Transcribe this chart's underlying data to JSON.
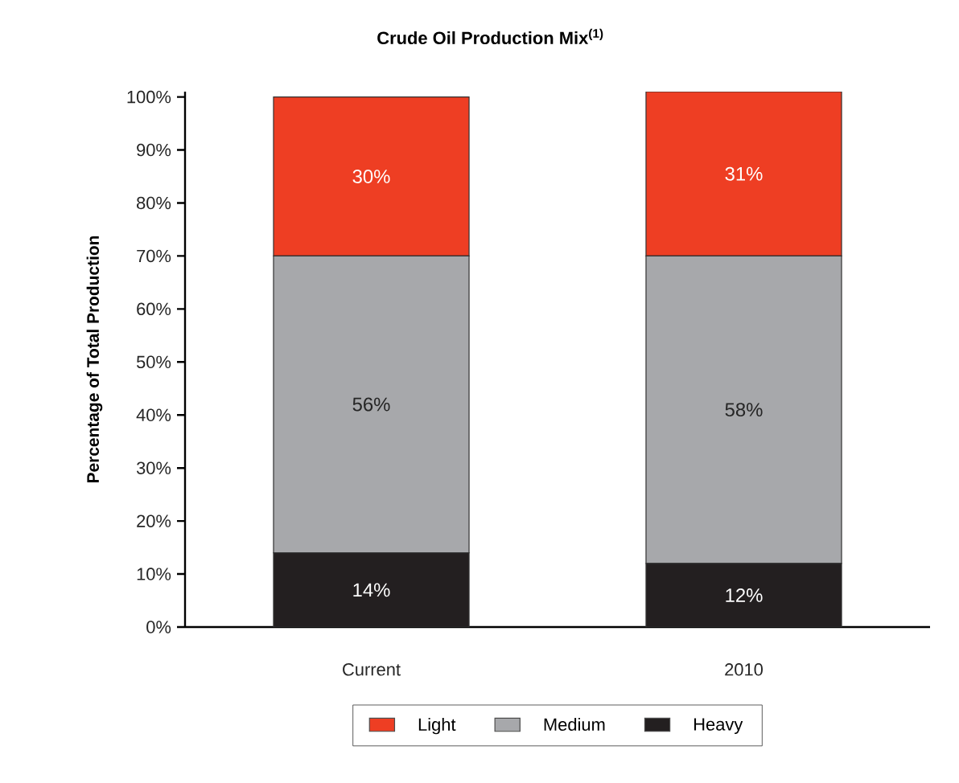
{
  "chart_data": {
    "type": "bar",
    "stacked": true,
    "title": "Crude Oil Production Mix$^{(1)}$",
    "ylabel": "Percentage of Total Production",
    "categories": [
      "Current",
      "2010"
    ],
    "series": [
      {
        "name": "Heavy",
        "color": "#231f20",
        "values": [
          14,
          12
        ],
        "value_labels": [
          "14%",
          "12%"
        ]
      },
      {
        "name": "Medium",
        "color": "#a7a8ab",
        "values": [
          56,
          58
        ],
        "value_labels": [
          "56%",
          "58%"
        ]
      },
      {
        "name": "Light",
        "color": "#ee3e23",
        "values": [
          30,
          31
        ],
        "value_labels": [
          "30%",
          "31%"
        ]
      }
    ],
    "ylim": [
      0,
      101
    ],
    "yticks": [
      {
        "value": 0,
        "label": "0%"
      },
      {
        "value": 10,
        "label": "10%"
      },
      {
        "value": 20,
        "label": "20%"
      },
      {
        "value": 30,
        "label": "30%"
      },
      {
        "value": 40,
        "label": "40%"
      },
      {
        "value": 50,
        "label": "50%"
      },
      {
        "value": 60,
        "label": "60%"
      },
      {
        "value": 70,
        "label": "70%"
      },
      {
        "value": 80,
        "label": "80%"
      },
      {
        "value": 90,
        "label": "90%"
      },
      {
        "value": 100,
        "label": "100%"
      }
    ],
    "legend": "bottom"
  }
}
